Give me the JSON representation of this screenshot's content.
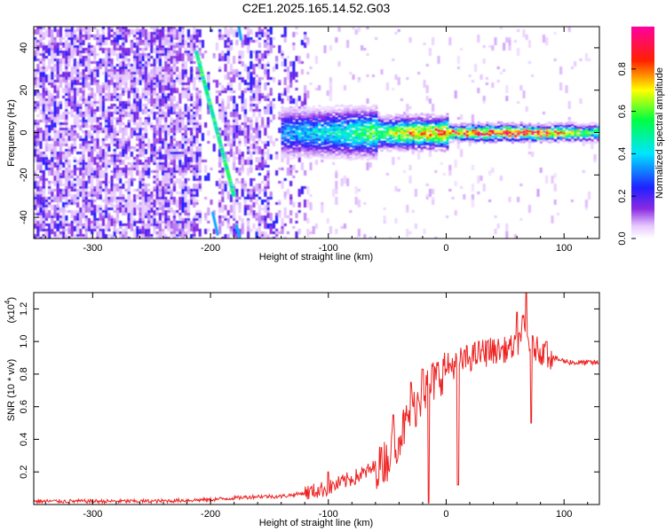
{
  "title": "C2E1.2025.165.14.52.G03",
  "colors": {
    "snr_line": "#ee2222",
    "axis": "#000000"
  },
  "spectrogram": {
    "xlabel": "Height of straight line (km)",
    "ylabel": "Frequency (Hz)",
    "xlim": [
      -350,
      130
    ],
    "ylim": [
      -50,
      50
    ],
    "xticks": [
      -300,
      -200,
      -100,
      0,
      100
    ],
    "yticks": [
      -40,
      -20,
      0,
      20,
      40
    ],
    "xtick_labels": [
      "-300",
      "-200",
      "-100",
      "0",
      "100"
    ],
    "ytick_labels": [
      "-40",
      "-20",
      "0",
      "20",
      "40"
    ]
  },
  "colorbar": {
    "label": "Normalized spectral amplitude",
    "range": [
      0,
      1
    ],
    "ticks": [
      0.0,
      0.2,
      0.4,
      0.6,
      0.8
    ],
    "tick_labels": [
      "0.0",
      "0.2",
      "0.4",
      "0.6",
      "0.8"
    ],
    "colormap": "rainbow (white-violet-blue-cyan-green-yellow-red-magenta)"
  },
  "chart_data": [
    {
      "type": "heatmap",
      "title": "C2E1.2025.165.14.52.G03",
      "xlabel": "Height of straight line (km)",
      "ylabel": "Frequency (Hz)",
      "xlim": [
        -350,
        130
      ],
      "ylim": [
        -50,
        50
      ],
      "features": [
        {
          "name": "",
          "kind": "diagonal streak",
          "from": [
            -212,
            38
          ],
          "to": [
            -180,
            -30
          ],
          "amplitude": 0.5
        },
        {
          "name": "",
          "kind": "horizontal band near 0 Hz",
          "x_range": [
            -140,
            130
          ],
          "y": 0,
          "amplitude_profile": [
            [
              -140,
              0.35
            ],
            [
              -100,
              0.45
            ],
            [
              -60,
              0.6
            ],
            [
              -20,
              0.8
            ],
            [
              20,
              0.9
            ],
            [
              80,
              0.9
            ],
            [
              130,
              0.55
            ]
          ]
        },
        {
          "name": "",
          "kind": "scattered noise",
          "x_range": [
            -350,
            -120
          ],
          "amplitude": 0.15
        }
      ]
    },
    {
      "type": "line",
      "xlabel": "Height of straight line (km)",
      "ylabel": "SNR (10 * v/v)",
      "yscale_label": "(x10",
      "yscale_exp": "4",
      "xlim": [
        -350,
        130
      ],
      "ylim": [
        0,
        1.3
      ],
      "xticks": [
        -300,
        -200,
        -100,
        0,
        100
      ],
      "xtick_labels": [
        "-300",
        "-200",
        "-100",
        "0",
        "100"
      ],
      "yticks": [
        0.2,
        0.4,
        0.6,
        0.8,
        1.0,
        1.2
      ],
      "ytick_labels": [
        "0.2",
        "0.4",
        "0.6",
        "0.8",
        "1.0",
        "1.2"
      ],
      "series": [
        {
          "name": "",
          "x": [
            -350,
            -300,
            -250,
            -200,
            -180,
            -160,
            -140,
            -120,
            -100,
            -90,
            -80,
            -70,
            -60,
            -50,
            -45,
            -40,
            -35,
            -30,
            -25,
            -20,
            -15,
            -10,
            -5,
            0,
            10,
            20,
            30,
            40,
            50,
            60,
            65,
            70,
            75,
            80,
            90,
            100,
            110,
            120,
            130
          ],
          "y": [
            0.02,
            0.02,
            0.02,
            0.03,
            0.04,
            0.05,
            0.05,
            0.07,
            0.1,
            0.13,
            0.16,
            0.19,
            0.23,
            0.28,
            0.35,
            0.42,
            0.48,
            0.55,
            0.62,
            0.68,
            0.72,
            0.76,
            0.8,
            0.84,
            0.87,
            0.9,
            0.93,
            0.94,
            0.95,
            0.97,
            1.1,
            1.0,
            0.96,
            0.94,
            0.9,
            0.88,
            0.87,
            0.87,
            0.87
          ],
          "spikes": [
            [
              -100,
              0.2
            ],
            [
              -55,
              0.35
            ],
            [
              -45,
              0.55
            ],
            [
              -30,
              0.75
            ],
            [
              -20,
              0.83
            ],
            [
              -15,
              0.01
            ],
            [
              10,
              0.12
            ],
            [
              35,
              1.0
            ],
            [
              60,
              1.18
            ],
            [
              68,
              1.3
            ],
            [
              72,
              0.5
            ],
            [
              85,
              1.0
            ]
          ]
        }
      ]
    }
  ]
}
